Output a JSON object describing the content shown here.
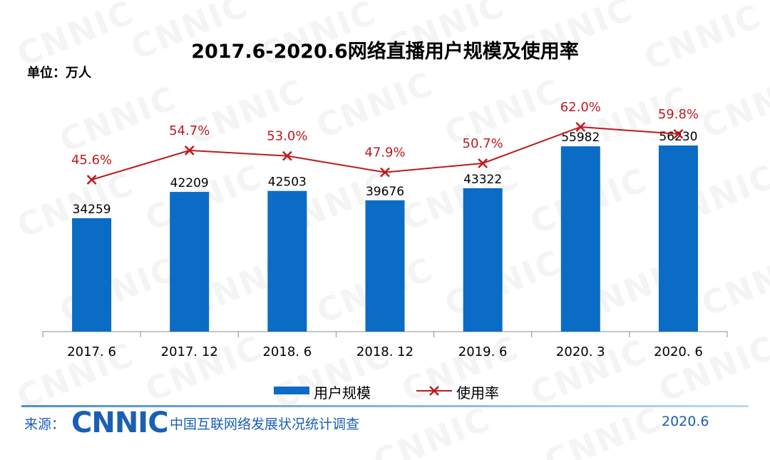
{
  "title": "2017.6-2020.6网络直播用户规模及使用率",
  "unit": "单位：万人",
  "chart_data": {
    "type": "bar",
    "categories": [
      "2017. 6",
      "2017. 12",
      "2018. 6",
      "2018. 12",
      "2019. 6",
      "2020. 3",
      "2020. 6"
    ],
    "series": [
      {
        "name": "用户规模",
        "type": "bar",
        "values": [
          34259,
          42209,
          42503,
          39676,
          43322,
          55982,
          56230
        ]
      },
      {
        "name": "使用率",
        "type": "line",
        "values": [
          45.6,
          54.7,
          53.0,
          47.9,
          50.7,
          62.0,
          59.8
        ]
      }
    ],
    "bar_labels": [
      "34259",
      "42209",
      "42503",
      "39676",
      "43322",
      "55982",
      "56230"
    ],
    "line_labels": [
      "45.6%",
      "54.7%",
      "53.0%",
      "47.9%",
      "50.7%",
      "62.0%",
      "59.8%"
    ],
    "legend_position": "bottom",
    "grid": false,
    "colors": {
      "bar": "#0a6cc4",
      "line": "#c0191f",
      "line_label": "#c0191f"
    }
  },
  "legend": {
    "bar_label": "用户规模",
    "line_label": "使用率"
  },
  "footer": {
    "source_label": "来源：",
    "logo_text": "CNNIC",
    "source_name": "中国互联网络发展状况统计调查",
    "date": "2020.6"
  },
  "watermark_text": "CNNIC"
}
